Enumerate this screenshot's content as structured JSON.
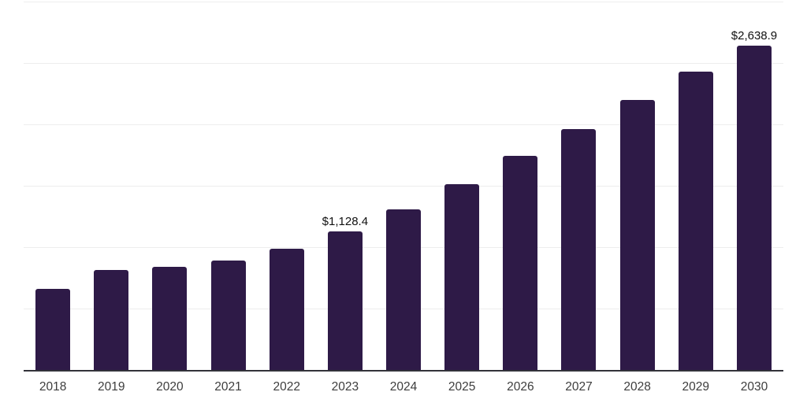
{
  "chart_data": {
    "type": "bar",
    "title": "",
    "xlabel": "",
    "ylabel": "",
    "ylim": [
      0,
      3000
    ],
    "gridline_step": 500,
    "grid": "horizontal",
    "legend": "none",
    "bar_color": "#2e1a47",
    "axis_line_color": "#33333a",
    "gridline_color": "#ededed",
    "value_label_color": "#111111",
    "tick_label_color": "#3d3d3d",
    "categories": [
      "2018",
      "2019",
      "2020",
      "2021",
      "2022",
      "2023",
      "2024",
      "2025",
      "2026",
      "2027",
      "2028",
      "2029",
      "2030"
    ],
    "values": [
      660,
      812,
      840,
      890,
      986,
      1128.4,
      1310,
      1512,
      1742,
      1962,
      2198,
      2430,
      2638.9
    ],
    "data_labels": [
      null,
      null,
      null,
      null,
      null,
      "$1,128.4",
      null,
      null,
      null,
      null,
      null,
      null,
      "$2,638.9"
    ]
  }
}
